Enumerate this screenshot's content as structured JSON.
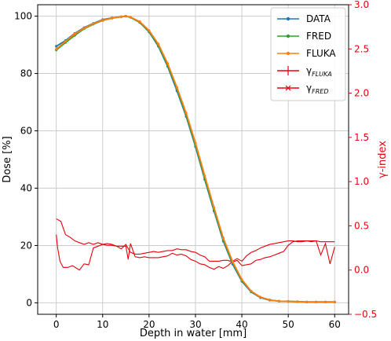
{
  "chart_data": {
    "type": "line",
    "xlabel": "Depth in water [mm]",
    "ylabel": "Dose [%]",
    "y2label": "γ-index",
    "xlim": [
      -4,
      63
    ],
    "ylim": [
      -4,
      104
    ],
    "y2lim": [
      -0.5,
      3.0
    ],
    "xticks": [
      "0",
      "10",
      "20",
      "30",
      "40",
      "50",
      "60"
    ],
    "yticks": [
      "0",
      "20",
      "40",
      "60",
      "80",
      "100"
    ],
    "y2ticks": [
      "−0.5",
      "0.0",
      "0.5",
      "1.0",
      "1.5",
      "2.0",
      "2.5",
      "3.0"
    ],
    "grid": true,
    "legend_position": "top-right",
    "colors": {
      "data": "#1f77b4",
      "fred": "#2ca02c",
      "fluka": "#ff7f0e",
      "gamma": "#e8000b",
      "right_axis": "#e8000b"
    },
    "legend": [
      {
        "label": "DATA",
        "style": "dot-line",
        "color": "#1f77b4"
      },
      {
        "label": "FRED",
        "style": "dot-line",
        "color": "#2ca02c"
      },
      {
        "label": "FLUKA",
        "style": "dot-line",
        "color": "#ff7f0e"
      },
      {
        "label": "γ",
        "sub": "FLUKA",
        "style": "plus-line",
        "color": "#e8000b"
      },
      {
        "label": "γ",
        "sub": "FRED",
        "style": "x-line",
        "color": "#e8000b"
      }
    ],
    "dose_series": [
      {
        "name": "DATA",
        "x": [
          0,
          2,
          4,
          6,
          8,
          10,
          12,
          14,
          15,
          16,
          18,
          20,
          22,
          24,
          26,
          28,
          30,
          32,
          34,
          36,
          38,
          40,
          42,
          44,
          46,
          48,
          50,
          52,
          54,
          56,
          58,
          60
        ],
        "y": [
          89.5,
          91.5,
          94,
          96,
          97.5,
          98.8,
          99.4,
          99.8,
          100,
          99.6,
          97.8,
          94.5,
          89.5,
          82.5,
          74,
          65,
          54.5,
          43,
          32,
          21.5,
          13.5,
          7.5,
          3.8,
          1.8,
          0.9,
          0.6,
          0.5,
          0.4,
          0.3,
          0.3,
          0.3,
          0.3
        ]
      },
      {
        "name": "FRED",
        "x": [
          0,
          2,
          4,
          6,
          8,
          10,
          12,
          14,
          15,
          16,
          18,
          20,
          22,
          24,
          26,
          28,
          30,
          32,
          34,
          36,
          38,
          40,
          42,
          44,
          46,
          48,
          50,
          52,
          54,
          56,
          58,
          60
        ],
        "y": [
          88.2,
          90.8,
          93.3,
          95.6,
          97.2,
          98.5,
          99.3,
          99.8,
          100,
          99.6,
          97.9,
          94.7,
          89.9,
          83,
          74.6,
          65.5,
          55,
          43.5,
          32.5,
          22,
          14,
          7.8,
          4,
          1.9,
          1,
          0.6,
          0.5,
          0.4,
          0.3,
          0.3,
          0.3,
          0.3
        ]
      },
      {
        "name": "FLUKA",
        "x": [
          0,
          2,
          4,
          6,
          8,
          10,
          12,
          14,
          15,
          16,
          18,
          20,
          22,
          24,
          26,
          28,
          30,
          32,
          34,
          36,
          38,
          40,
          42,
          44,
          46,
          48,
          50,
          52,
          54,
          56,
          58,
          60
        ],
        "y": [
          88.5,
          91.2,
          93.8,
          95.8,
          97.4,
          98.6,
          99.3,
          99.8,
          100,
          99.7,
          98.1,
          95,
          90.3,
          83.5,
          75.2,
          66.2,
          55.8,
          44.3,
          33.2,
          22.6,
          14.4,
          8.1,
          4.1,
          2,
          1,
          0.6,
          0.5,
          0.4,
          0.3,
          0.3,
          0.3,
          0.3
        ]
      }
    ],
    "gamma_series": [
      {
        "name": "γFLUKA",
        "x": [
          0,
          0.3,
          0.8,
          1.5,
          2.5,
          3.5,
          5,
          6,
          7,
          8,
          9,
          10,
          11,
          12,
          13,
          14,
          15,
          15.5,
          16,
          17,
          18,
          19,
          20,
          22,
          24,
          25,
          26,
          27,
          28,
          29,
          30,
          31,
          32,
          33,
          34,
          35,
          36,
          37,
          38,
          39,
          40,
          41,
          42,
          43,
          44,
          45,
          46,
          47,
          48,
          49,
          50,
          51,
          52,
          53,
          54,
          55,
          56,
          57,
          58,
          59,
          60
        ],
        "y": [
          0.4,
          0.25,
          0.1,
          0.03,
          0.03,
          0.05,
          0.0,
          0.07,
          0.06,
          0.25,
          0.27,
          0.29,
          0.28,
          0.28,
          0.27,
          0.27,
          0.27,
          0.12,
          0.3,
          0.15,
          0.14,
          0.15,
          0.14,
          0.14,
          0.16,
          0.19,
          0.17,
          0.18,
          0.16,
          0.12,
          0.1,
          0.07,
          0.06,
          0.03,
          0.01,
          0.04,
          0.02,
          0.05,
          0.1,
          0.13,
          0.1,
          0.16,
          0.2,
          0.22,
          0.25,
          0.27,
          0.29,
          0.3,
          0.31,
          0.32,
          0.33,
          0.33,
          0.32,
          0.32,
          0.33,
          0.32,
          0.33,
          0.32,
          0.32,
          0.32,
          0.32
        ]
      },
      {
        "name": "γFRED",
        "x": [
          0,
          1,
          2,
          3,
          4,
          5,
          6,
          7,
          8,
          9,
          10,
          11,
          12,
          13,
          14,
          15,
          16,
          17,
          18,
          19,
          20,
          21,
          22,
          23,
          24,
          25,
          26,
          27,
          28,
          29,
          30,
          31,
          32,
          33,
          34,
          35,
          36,
          37,
          38,
          39,
          40,
          41,
          42,
          43,
          44,
          45,
          46,
          47,
          48,
          49,
          50,
          51,
          52,
          53,
          54,
          55,
          56,
          57,
          58,
          59,
          60
        ],
        "y": [
          0.58,
          0.55,
          0.4,
          0.37,
          0.33,
          0.31,
          0.29,
          0.31,
          0.29,
          0.31,
          0.29,
          0.3,
          0.29,
          0.27,
          0.24,
          0.29,
          0.2,
          0.18,
          0.18,
          0.19,
          0.2,
          0.21,
          0.2,
          0.21,
          0.22,
          0.22,
          0.24,
          0.23,
          0.23,
          0.21,
          0.2,
          0.17,
          0.15,
          0.1,
          0.1,
          0.1,
          0.11,
          0.11,
          0.09,
          0.11,
          0.05,
          0.06,
          0.07,
          0.11,
          0.12,
          0.14,
          0.15,
          0.17,
          0.19,
          0.21,
          0.28,
          0.32,
          0.33,
          0.33,
          0.33,
          0.33,
          0.33,
          0.17,
          0.3,
          0.07,
          0.26
        ]
      }
    ]
  }
}
